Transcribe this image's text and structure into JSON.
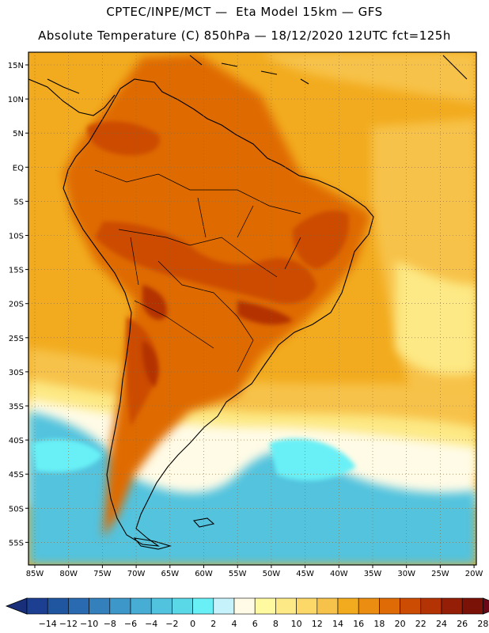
{
  "header": {
    "line1": "CPTEC/INPE/MCT —  Eta Model 15km — GFS",
    "line2": "Absolute Temperature (C) 850hPa — 18/12/2020 12UTC fct=125h"
  },
  "map": {
    "lat_labels": [
      "15N",
      "10N",
      "5N",
      "EQ",
      "5S",
      "10S",
      "15S",
      "20S",
      "25S",
      "30S",
      "35S",
      "40S",
      "45S",
      "50S",
      "55S"
    ],
    "lon_labels": [
      "85W",
      "80W",
      "75W",
      "70W",
      "65W",
      "60W",
      "55W",
      "50W",
      "45W",
      "40W",
      "35W",
      "30W",
      "25W",
      "20W"
    ]
  },
  "colorbar": {
    "labels": [
      "-14",
      "-12",
      "-10",
      "-8",
      "-6",
      "-4",
      "-2",
      "0",
      "2",
      "4",
      "6",
      "8",
      "10",
      "12",
      "14",
      "16",
      "18",
      "20",
      "22",
      "24",
      "26",
      "28"
    ],
    "colors": [
      "#1c3f92",
      "#2055a0",
      "#2a6ab0",
      "#3380bd",
      "#3d97c9",
      "#47add4",
      "#52c3de",
      "#5bd8e8",
      "#69f0f6",
      "#c6f2fb",
      "#fffbe6",
      "#fff9a0",
      "#fde985",
      "#fbd868",
      "#f7c24a",
      "#f2ab1e",
      "#ea8d10",
      "#df6b06",
      "#cc4c04",
      "#b33304",
      "#951e06",
      "#7a1208"
    ],
    "low_arrow_color": "#1a2f7a",
    "high_arrow_color": "#6a0818"
  },
  "colors": {
    "ocean_warm": "#f2ab1e",
    "ocean_mild": "#f7c24a",
    "ocean_pale": "#fde985",
    "cold_water": "#52c3de",
    "hot_inland": "#df6b06",
    "hotter": "#cc4c04",
    "hottest": "#b33304",
    "coast": "#000000"
  }
}
